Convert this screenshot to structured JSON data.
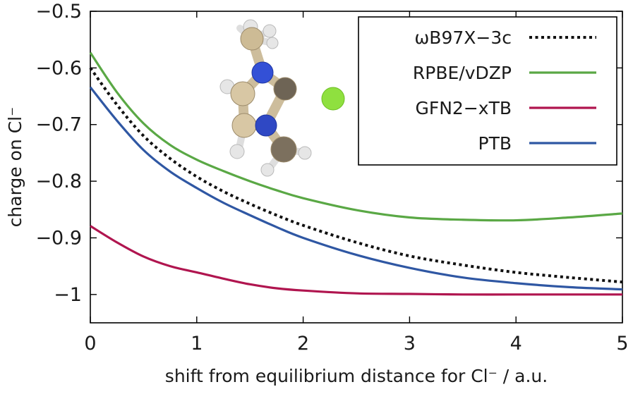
{
  "chart_data": {
    "type": "line",
    "xlabel": "shift from equilibrium distance for Cl⁻ / a.u.",
    "ylabel": "charge on Cl⁻",
    "xlim": [
      0,
      5
    ],
    "ylim": [
      -1.05,
      -0.5
    ],
    "x_ticks": [
      0,
      1,
      2,
      3,
      4,
      5
    ],
    "x_tick_labels": [
      "0",
      "1",
      "2",
      "3",
      "4",
      "5"
    ],
    "y_ticks": [
      -0.5,
      -0.6,
      -0.7,
      -0.8,
      -0.9,
      -1.0
    ],
    "y_tick_labels": [
      "−0.5",
      "−0.6",
      "−0.7",
      "−0.8",
      "−0.9",
      "−1"
    ],
    "grid": false,
    "legend_position": "top-right",
    "inset": "ball-and-stick molecule (1,3-dimethylimidazolium cation) with a green chloride sphere",
    "series": [
      {
        "name": "ωB97X−3c",
        "color": "#111111",
        "dash": "dotted",
        "x": [
          0,
          0.25,
          0.5,
          0.75,
          1.0,
          1.25,
          1.5,
          1.75,
          2.0,
          2.5,
          3.0,
          3.5,
          4.0,
          4.5,
          5.0
        ],
        "y": [
          -0.6,
          -0.665,
          -0.72,
          -0.76,
          -0.792,
          -0.818,
          -0.84,
          -0.86,
          -0.878,
          -0.908,
          -0.932,
          -0.948,
          -0.961,
          -0.97,
          -0.978
        ]
      },
      {
        "name": "RPBE/vDZP",
        "color": "#5aa845",
        "dash": "solid",
        "x": [
          0,
          0.25,
          0.5,
          0.75,
          1.0,
          1.25,
          1.5,
          1.75,
          2.0,
          2.5,
          3.0,
          3.5,
          4.0,
          4.5,
          5.0
        ],
        "y": [
          -0.573,
          -0.643,
          -0.698,
          -0.736,
          -0.762,
          -0.782,
          -0.8,
          -0.816,
          -0.83,
          -0.851,
          -0.864,
          -0.868,
          -0.869,
          -0.864,
          -0.857
        ]
      },
      {
        "name": "GFN2−xTB",
        "color": "#b0154f",
        "dash": "solid",
        "x": [
          0,
          0.25,
          0.5,
          0.75,
          1.0,
          1.25,
          1.5,
          1.75,
          2.0,
          2.5,
          3.0,
          3.5,
          4.0,
          4.5,
          5.0
        ],
        "y": [
          -0.879,
          -0.908,
          -0.933,
          -0.95,
          -0.961,
          -0.972,
          -0.982,
          -0.989,
          -0.993,
          -0.998,
          -0.999,
          -1.0,
          -1.0,
          -1.0,
          -1.0
        ]
      },
      {
        "name": "PTB",
        "color": "#2f57a3",
        "dash": "solid",
        "x": [
          0,
          0.25,
          0.5,
          0.75,
          1.0,
          1.25,
          1.5,
          1.75,
          2.0,
          2.5,
          3.0,
          3.5,
          4.0,
          4.5,
          5.0
        ],
        "y": [
          -0.634,
          -0.693,
          -0.745,
          -0.783,
          -0.812,
          -0.838,
          -0.86,
          -0.881,
          -0.9,
          -0.93,
          -0.953,
          -0.97,
          -0.98,
          -0.987,
          -0.991
        ]
      }
    ]
  }
}
